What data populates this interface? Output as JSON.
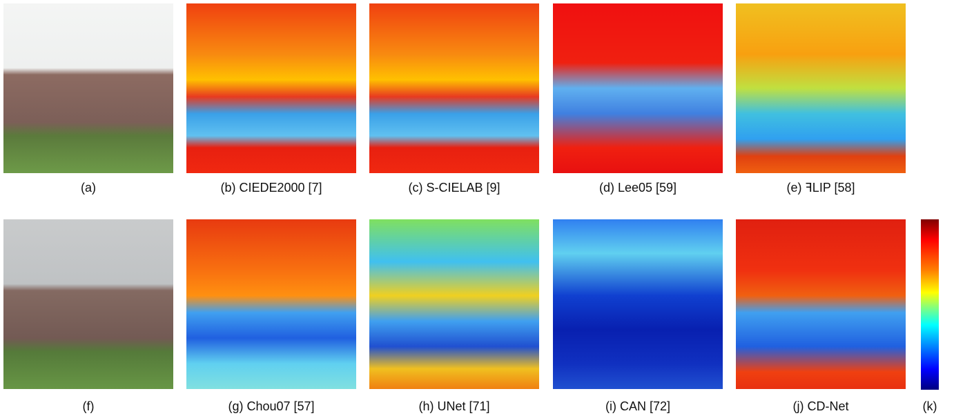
{
  "captions": [
    "(a)",
    "(b) CIEDE2000 [7]",
    "(c) S-CIELAB [9]",
    "(d) Lee05 [59]",
    "(e) ꟻLIP [58]",
    "(f)",
    "(g) Chou07 [57]",
    "(h) UNet [71]",
    "(i) CAN [72]",
    "(j) CD-Net",
    "(k)"
  ]
}
